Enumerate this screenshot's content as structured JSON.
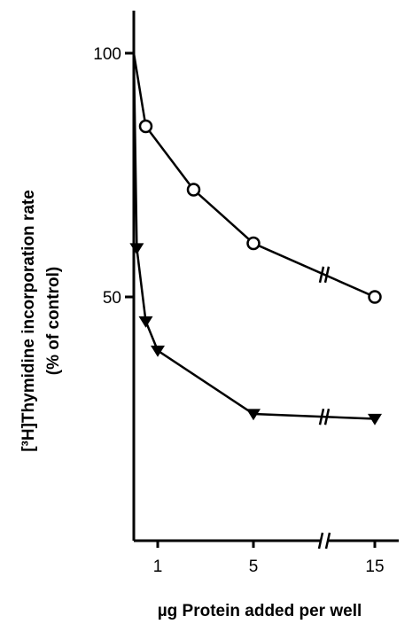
{
  "chart_data": {
    "type": "line",
    "xlabel": "µg Protein added per well",
    "ylabel_line1": "[³H]Thymidine incorporation rate",
    "ylabel_line2": "(% of control)",
    "x_ticks": [
      {
        "value": 1,
        "label": "1"
      },
      {
        "value": 5,
        "label": "5"
      },
      {
        "value": 15,
        "label": "15"
      }
    ],
    "y_ticks": [
      {
        "value": 50,
        "label": "50"
      },
      {
        "value": 100,
        "label": "100"
      }
    ],
    "axis_break_between": [
      5,
      15
    ],
    "xlim": [
      0,
      15
    ],
    "ylim": [
      0,
      100
    ],
    "grid": false,
    "series": [
      {
        "marker": "open-circle",
        "points": [
          [
            0,
            100
          ],
          [
            0.5,
            85
          ],
          [
            2.5,
            72
          ],
          [
            5,
            61
          ],
          [
            15,
            50
          ]
        ]
      },
      {
        "marker": "filled-triangle-down",
        "points": [
          [
            0,
            100
          ],
          [
            0.125,
            60
          ],
          [
            0.5,
            45
          ],
          [
            1,
            39
          ],
          [
            5,
            26
          ],
          [
            15,
            25
          ]
        ]
      }
    ]
  }
}
